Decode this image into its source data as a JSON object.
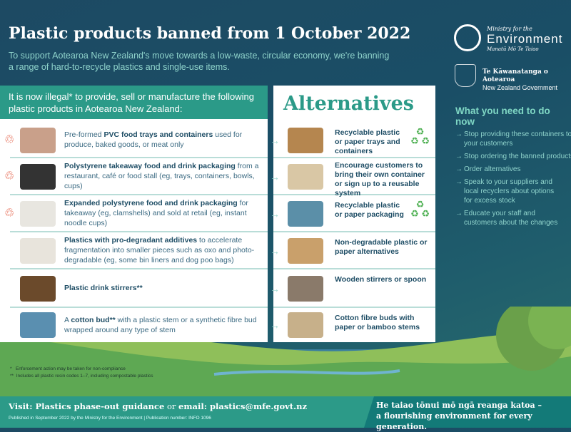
{
  "header": {
    "title": "Plastic products banned from 1 October 2022",
    "subtitle": "To support Aotearoa New Zealand's move towards a low-waste, circular economy, we're banning a range of hard-to-recycle plastics and single-use items."
  },
  "logos": {
    "mfe_top": "Ministry for the",
    "mfe_main": "Environment",
    "mfe_sub": "Manatū Mō Te Taiao",
    "gov_maori": "Te Kāwanatanga o Aotearoa",
    "gov_en": "New Zealand Government"
  },
  "banned": {
    "heading": "It is now illegal* to provide, sell or manufacture the following plastic products in Aotearoa New Zealand:",
    "items": [
      {
        "pre": "Pre-formed ",
        "bold": "PVC food trays and containers",
        "post": " used for produce, baked goods, or meat only",
        "resin": "3"
      },
      {
        "pre": "",
        "bold": "Polystyrene takeaway food and drink packaging",
        "post": " from a restaurant, café or food stall (eg, trays, containers, bowls, cups)",
        "resin": "6"
      },
      {
        "pre": "",
        "bold": "Expanded polystyrene food and drink packaging",
        "post": " for takeaway (eg, clamshells) and sold at retail (eg, instant noodle cups)",
        "resin": "6"
      },
      {
        "pre": "",
        "bold": "Plastics with pro-degradant additives",
        "post": " to accelerate fragmentation into smaller pieces such as oxo and photo-degradable (eg, some bin liners and dog poo bags)",
        "resin": ""
      },
      {
        "pre": "",
        "bold": "Plastic drink stirrers**",
        "post": "",
        "resin": ""
      },
      {
        "pre": "A ",
        "bold": "cotton bud**",
        "post": " with a plastic stem or a synthetic fibre bud wrapped around any type of stem",
        "resin": ""
      }
    ]
  },
  "alternatives": {
    "heading": "Alternatives",
    "items": [
      {
        "text": "Recyclable plastic or paper trays and containers",
        "recycle": true
      },
      {
        "text": "Encourage customers to bring their own container or sign up to a reusable system",
        "recycle": false
      },
      {
        "text": "Recyclable plastic or paper packaging",
        "recycle": true
      },
      {
        "text": "Non-degradable plastic or paper alternatives",
        "recycle": false
      },
      {
        "text": "Wooden stirrers or spoon",
        "recycle": false
      },
      {
        "text": "Cotton fibre buds with paper or bamboo stems",
        "recycle": false
      }
    ]
  },
  "todo": {
    "heading": "What you need to do now",
    "items": [
      "Stop providing these containers to your customers",
      "Stop ordering the banned products",
      "Order alternatives",
      "Speak to your suppliers and local recyclers about options for excess stock",
      "Educate your staff and customers about the changes"
    ]
  },
  "notes": {
    "n1": "*   Enforcement action may be taken for non-compliance",
    "n2": "**  Includes all plastic resin codes 1–7, including compostable plastics"
  },
  "footer": {
    "visit_label": "Visit: Plastics phase-out guidance",
    "or": " or ",
    "email": "email: plastics@mfe.govt.nz",
    "published": "Published in September 2022 by the Ministry for the Environment | Publication number: INFO 1096",
    "motto1": "He taiao tōnui mō ngā reanga katoa –",
    "motto2": "a flourishing environment for every generation."
  },
  "colors": {
    "teal": "#2b9a88",
    "navy": "#1d4a63",
    "resin_red": "#e04a2e"
  }
}
